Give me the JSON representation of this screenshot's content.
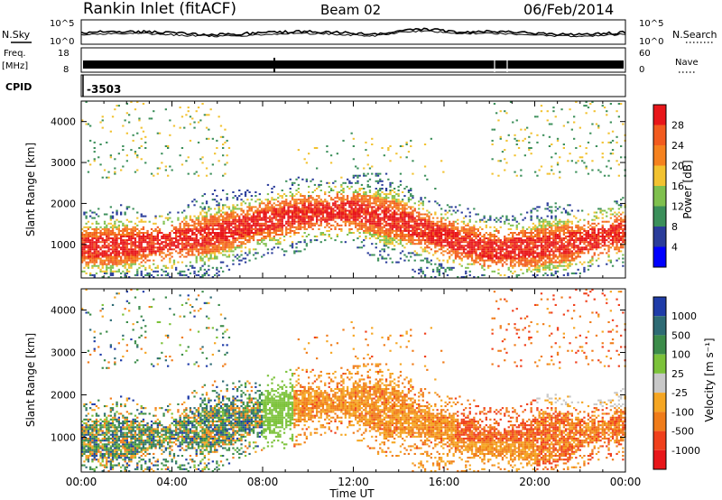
{
  "header": {
    "station": "Rankin Inlet (fitACF)",
    "beam": "Beam 02",
    "date": "06/Feb/2014"
  },
  "top_panels": {
    "nsky_label": "N.Sky",
    "nsearch_label": "N.Search",
    "nsky_ticks": [
      "10^5",
      "10^0"
    ],
    "nsearch_ticks": [
      "10^5",
      "10^0"
    ],
    "freq_label_1": "Freq.",
    "freq_label_2": "[MHz]",
    "freq_ticks": [
      "18",
      "8"
    ],
    "nave_label": "Nave",
    "nave_ticks": [
      "60",
      "0"
    ],
    "cpid_label": "CPID",
    "cpid_value": "-3503"
  },
  "power_colorbar": {
    "title": "Power [dB]",
    "levels": [
      "4",
      "8",
      "12",
      "16",
      "20",
      "24",
      "28"
    ],
    "colors": [
      "#0000ff",
      "#2a3c9a",
      "#3b8f5a",
      "#7fc04e",
      "#f2c230",
      "#f5821f",
      "#f25b1f",
      "#e8161a"
    ]
  },
  "velocity_colorbar": {
    "title": "Velocity [m s⁻¹]",
    "levels": [
      "1000",
      "500",
      "100",
      "25",
      "-25",
      "-100",
      "-500",
      "-1000"
    ],
    "colors": [
      "#1f3ca8",
      "#2e6b74",
      "#3c8c4a",
      "#7cc23a",
      "#c8c8c8",
      "#f5a623",
      "#f07c1a",
      "#f0401c",
      "#e8161a"
    ]
  },
  "x_axis": {
    "title": "Time UT",
    "ticks": [
      "00:00",
      "04:00",
      "08:00",
      "12:00",
      "16:00",
      "20:00",
      "00:00"
    ]
  },
  "chart_data": [
    {
      "type": "heatmap",
      "title": "Rankin Inlet (fitACF) Beam 02 06/Feb/2014",
      "xlabel": "Time UT",
      "ylabel": "Slant Range [km]",
      "x_ticks": [
        "00:00",
        "04:00",
        "08:00",
        "12:00",
        "16:00",
        "20:00",
        "00:00"
      ],
      "xlim_hours": [
        0,
        24
      ],
      "ylim": [
        180,
        4500
      ],
      "y_ticks": [
        1000,
        2000,
        3000,
        4000
      ],
      "colorbar_label": "Power [dB]",
      "colorbar_levels": [
        4,
        8,
        12,
        16,
        20,
        24,
        28
      ],
      "main_band": [
        {
          "hour": 0,
          "range": 900
        },
        {
          "hour": 2,
          "range": 950
        },
        {
          "hour": 4,
          "range": 1050
        },
        {
          "hour": 6,
          "range": 1250
        },
        {
          "hour": 8,
          "range": 1550
        },
        {
          "hour": 10,
          "range": 1750
        },
        {
          "hour": 12,
          "range": 1800
        },
        {
          "hour": 14,
          "range": 1550
        },
        {
          "hour": 16,
          "range": 1150
        },
        {
          "hour": 18,
          "range": 850
        },
        {
          "hour": 20,
          "range": 900
        },
        {
          "hour": 22,
          "range": 1050
        },
        {
          "hour": 24,
          "range": 1300
        }
      ]
    },
    {
      "type": "heatmap",
      "xlabel": "Time UT",
      "ylabel": "Slant Range [km]",
      "x_ticks": [
        "00:00",
        "04:00",
        "08:00",
        "12:00",
        "16:00",
        "20:00",
        "00:00"
      ],
      "xlim_hours": [
        0,
        24
      ],
      "ylim": [
        180,
        4500
      ],
      "y_ticks": [
        1000,
        2000,
        3000,
        4000
      ],
      "colorbar_label": "Velocity [m s⁻¹]",
      "colorbar_levels": [
        1000,
        500,
        100,
        25,
        -25,
        -100,
        -500,
        -1000
      ]
    },
    {
      "type": "line",
      "series": [
        {
          "name": "N.Sky"
        },
        {
          "name": "N.Search"
        }
      ],
      "y_ticks": [
        "10^0",
        "10^5"
      ]
    },
    {
      "type": "line",
      "series": [
        {
          "name": "Freq."
        },
        {
          "name": "Nave"
        }
      ],
      "y_ticks_left": [
        8,
        18
      ],
      "y_ticks_right": [
        0,
        60
      ]
    }
  ]
}
